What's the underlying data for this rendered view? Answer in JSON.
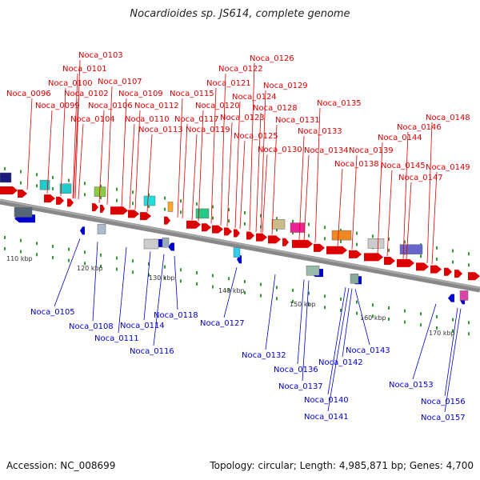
{
  "title": "Nocardioides sp. JS614, complete genome",
  "accession": "Accession: NC_008699",
  "summary": "Topology: circular; Length: 4,985,871 bp; Genes: 4,700",
  "scale_labels": [
    "110 kbp",
    "120 kbp",
    "130 kbp",
    "140 kbp",
    "150 kbp",
    "160 kbp",
    "170 kbp"
  ],
  "colors": {
    "forward": "#dd0000",
    "reverse": "#0000cc",
    "backbone": "#888888",
    "tick": "#339933"
  },
  "forward_genes": [
    "Noca_0096",
    "Noca_0099",
    "Noca_0100",
    "Noca_0101",
    "Noca_0102",
    "Noca_0103",
    "Noca_0104",
    "Noca_0106",
    "Noca_0107",
    "Noca_0109",
    "Noca_0110",
    "Noca_0112",
    "Noca_0113",
    "Noca_0115",
    "Noca_0117",
    "Noca_0119",
    "Noca_0120",
    "Noca_0121",
    "Noca_0122",
    "Noca_0123",
    "Noca_0124",
    "Noca_0125",
    "Noca_0126",
    "Noca_0128",
    "Noca_0129",
    "Noca_0130",
    "Noca_0131",
    "Noca_0133",
    "Noca_0134",
    "Noca_0135",
    "Noca_0138",
    "Noca_0139",
    "Noca_0144",
    "Noca_0145",
    "Noca_0146",
    "Noca_0147",
    "Noca_0148",
    "Noca_0149"
  ],
  "reverse_genes": [
    "Noca_0105",
    "Noca_0108",
    "Noca_0111",
    "Noca_0114",
    "Noca_0116",
    "Noca_0118",
    "Noca_0127",
    "Noca_0132",
    "Noca_0136",
    "Noca_0137",
    "Noca_0140",
    "Noca_0141",
    "Noca_0142",
    "Noca_0143",
    "Noca_0153",
    "Noca_0156",
    "Noca_0157"
  ]
}
